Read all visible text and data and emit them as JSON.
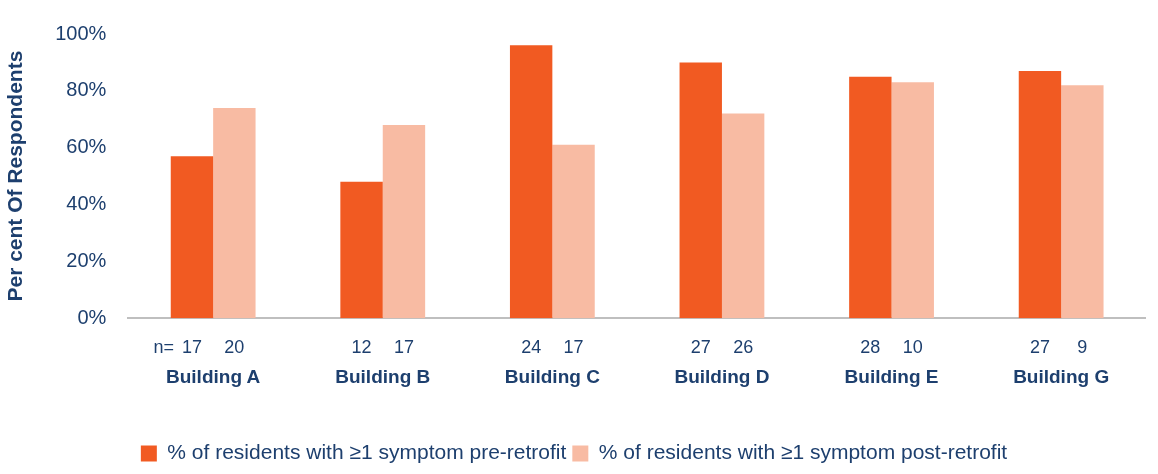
{
  "chart_data": {
    "type": "bar",
    "ylabel": "Per cent Of Respondents",
    "categories": [
      "Building A",
      "Building B",
      "Building C",
      "Building D",
      "Building E",
      "Building G"
    ],
    "series": [
      {
        "name": "% of residents with ≥1 symptom pre-retrofit",
        "color": "#f15a22",
        "values": [
          57,
          48,
          96,
          90,
          85,
          87
        ]
      },
      {
        "name": "% of residents with ≥1 symptom post-retrofit",
        "color": "#f8bba3",
        "values": [
          74,
          68,
          61,
          72,
          83,
          82
        ]
      }
    ],
    "annotations": [
      "n=",
      "17",
      "20",
      "12",
      "17",
      "24",
      "17",
      "27",
      "26",
      "28",
      "10",
      "27",
      "9"
    ],
    "ylim": [
      0,
      100
    ],
    "yticks": [
      {
        "value": 0,
        "label": "0%"
      },
      {
        "value": 20,
        "label": "20%"
      },
      {
        "value": 40,
        "label": "40%"
      },
      {
        "value": 60,
        "label": "60%"
      },
      {
        "value": 80,
        "label": "80%"
      },
      {
        "value": 100,
        "label": "100%"
      }
    ],
    "grid": false,
    "legend": "bottom"
  }
}
